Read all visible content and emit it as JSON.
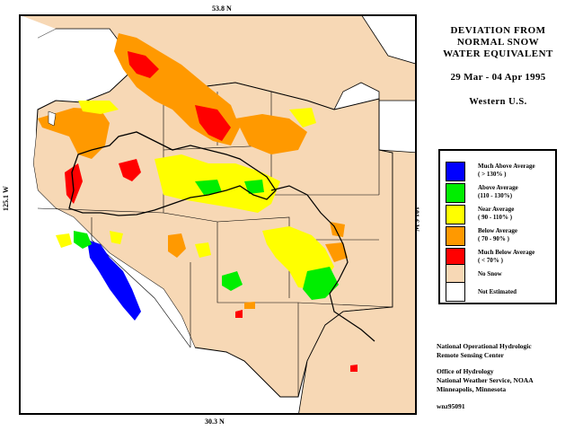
{
  "title": {
    "line1": "DEVIATION FROM",
    "line2": "NORMAL SNOW",
    "line3": "WATER EQUIVALENT",
    "date_range": "29 Mar - 04 Apr 1995",
    "region": "Western U.S."
  },
  "axes": {
    "top_lat": "53.8 N",
    "bottom_lat": "30.3 N",
    "left_lon": "125.1 W",
    "right_lon": "101.6 W"
  },
  "legend": {
    "items": [
      {
        "label": "Much Above Average",
        "range": "( > 130% )",
        "color": "#0000ff"
      },
      {
        "label": "Above Average",
        "range": "(110 - 130%)",
        "color": "#00ee00"
      },
      {
        "label": "Near Average",
        "range": "( 90 - 110% )",
        "color": "#ffff00"
      },
      {
        "label": "Below Average",
        "range": "( 70 - 90% )",
        "color": "#ff9900"
      },
      {
        "label": "Much Below Average",
        "range": "( < 70% )",
        "color": "#ff0000"
      },
      {
        "label": "No Snow",
        "range": "",
        "color": "#f7d8b5"
      },
      {
        "label": "Not Estimated",
        "range": "",
        "color": "#ffffff"
      }
    ]
  },
  "credits": {
    "line1": "National Operational Hydrologic",
    "line2": "Remote Sensing Center",
    "line3": "Office of Hydrology",
    "line4": "National Weather Service, NOAA",
    "line5": "Minneapolis, Minnesota",
    "product_code": "wnz95091"
  },
  "colors": {
    "land": "#f7d8b5",
    "water": "#ffffff",
    "boundary": "#000000"
  }
}
